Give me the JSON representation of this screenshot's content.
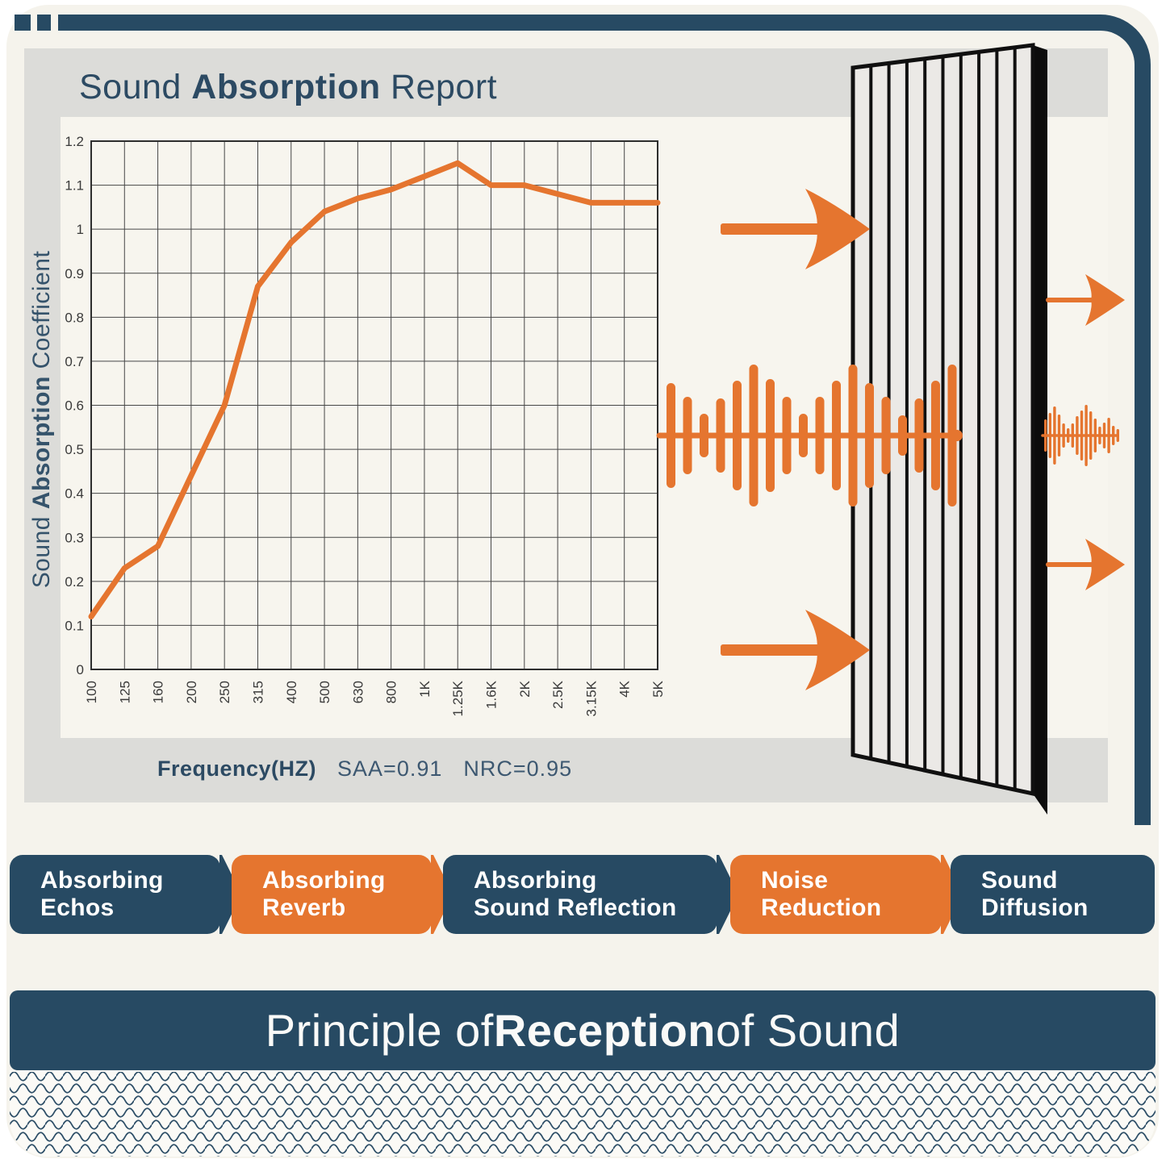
{
  "report": {
    "title": {
      "pre": "Sound ",
      "bold": "Absorption",
      "post": " Report"
    },
    "y_axis_title": {
      "pre": "Sound ",
      "bold": "Absorption",
      "post": " Coefficient"
    },
    "x_axis_title": "Frequency(HZ)",
    "saa_label": "SAA=0.91",
    "nrc_label": "NRC=0.95"
  },
  "chart_data": {
    "type": "line",
    "title": "Sound Absorption Report",
    "xlabel": "Frequency(HZ)",
    "ylabel": "Sound Absorption Coefficient",
    "categories": [
      "100",
      "125",
      "160",
      "200",
      "250",
      "315",
      "400",
      "500",
      "630",
      "800",
      "1K",
      "1.25K",
      "1.6K",
      "2K",
      "2.5K",
      "3.15K",
      "4K",
      "5K"
    ],
    "values": [
      0.12,
      0.23,
      0.28,
      0.44,
      0.6,
      0.87,
      0.97,
      1.04,
      1.07,
      1.09,
      1.12,
      1.15,
      1.1,
      1.1,
      1.08,
      1.06,
      1.06,
      1.06
    ],
    "ylim": [
      0,
      1.2
    ],
    "ytick_step": 0.1,
    "grid": true,
    "legend_position": "none",
    "line_color": "#e5752f",
    "annotations": [
      "SAA=0.91",
      "NRC=0.95"
    ]
  },
  "features": [
    {
      "line1": "Absorbing",
      "line2": "Echos",
      "style": "navy"
    },
    {
      "line1": "Absorbing",
      "line2": "Reverb",
      "style": "orange"
    },
    {
      "line1": "Absorbing",
      "line2": "Sound Reflection",
      "style": "navy"
    },
    {
      "line1": "Noise",
      "line2": "Reduction",
      "style": "orange"
    },
    {
      "line1": "Sound",
      "line2": "Diffusion",
      "style": "navy"
    }
  ],
  "footer": {
    "title": {
      "pre": "Principle of ",
      "bold": "Reception",
      "post": " of Sound"
    }
  },
  "colors": {
    "navy": "#274a63",
    "orange": "#e5752f",
    "card_cream": "#f5f3ec",
    "panel_gray": "#dcdcd9",
    "chart_cream": "#f7f5ee"
  },
  "icons": {
    "panel_illustration": "acoustic-slat-panel",
    "incoming_arrows": "sound-incoming-arrow",
    "outgoing_arrows": "sound-outgoing-arrow",
    "wave_large": "sound-wave-large",
    "wave_small": "sound-wave-small",
    "bottom_pattern": "zigzag-wave-pattern"
  }
}
